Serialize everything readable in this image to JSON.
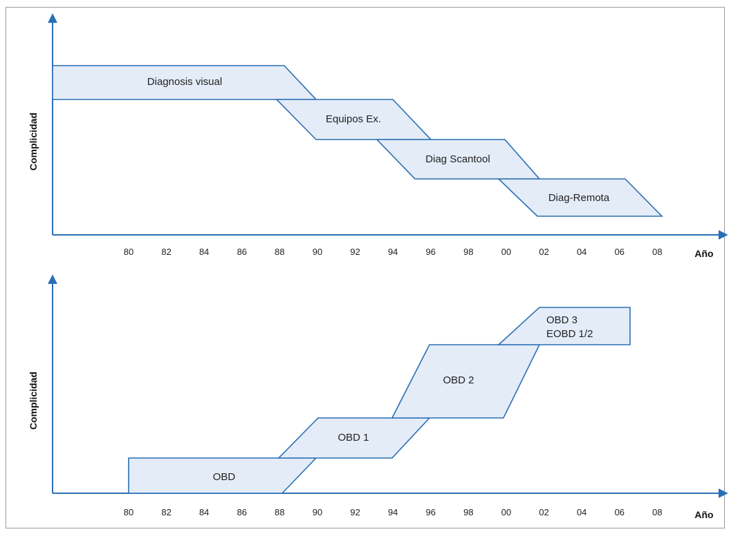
{
  "diagram": {
    "top": {
      "ylabel": "Complicidad",
      "xlabel": "Año",
      "ticks": [
        "80",
        "82",
        "84",
        "86",
        "88",
        "90",
        "92",
        "94",
        "96",
        "98",
        "00",
        "02",
        "04",
        "06",
        "08"
      ],
      "bands": [
        {
          "label": [
            "Diagnosis visual"
          ]
        },
        {
          "label": [
            "Equipos Ex."
          ]
        },
        {
          "label": [
            "Diag Scantool"
          ]
        },
        {
          "label": [
            "Diag-Remota"
          ]
        }
      ]
    },
    "bottom": {
      "ylabel": "Complicidad",
      "xlabel": "Año",
      "ticks": [
        "80",
        "82",
        "84",
        "86",
        "88",
        "90",
        "92",
        "94",
        "96",
        "98",
        "00",
        "02",
        "04",
        "06",
        "08"
      ],
      "bands": [
        {
          "label": [
            "OBD"
          ]
        },
        {
          "label": [
            "OBD 1"
          ]
        },
        {
          "label": [
            "OBD 2"
          ]
        },
        {
          "label": [
            "OBD 3",
            "EOBD 1/2"
          ]
        }
      ]
    },
    "colors": {
      "line": "#2a6fb4",
      "fill": "#e4ecf7"
    }
  }
}
